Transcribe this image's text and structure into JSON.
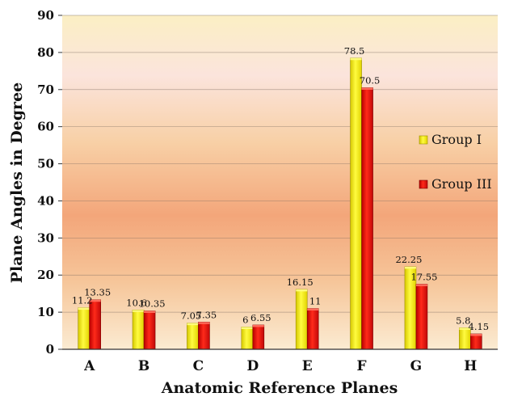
{
  "chart_data": {
    "type": "bar",
    "categories": [
      "A",
      "B",
      "C",
      "D",
      "E",
      "F",
      "G",
      "H"
    ],
    "series": [
      {
        "name": "Group I",
        "values": [
          11.2,
          10.6,
          7.05,
          6,
          16.15,
          78.5,
          22.25,
          5.8
        ],
        "color": "#f5f000"
      },
      {
        "name": "Group III",
        "values": [
          13.35,
          10.35,
          7.35,
          6.55,
          11,
          70.5,
          17.55,
          4.15
        ],
        "color": "#e01010"
      }
    ],
    "value_labels": [
      [
        "11.2",
        "10.6",
        "7.05",
        "6",
        "16.15",
        "78.5",
        "22.25",
        "5.8"
      ],
      [
        "13.35",
        "10.35",
        "7.35",
        "6.55",
        "11",
        "70.5",
        "17.55",
        "4.15"
      ]
    ],
    "xlabel": "Anatomic Reference Planes",
    "ylabel": "Plane Angles in Degree",
    "ylim": [
      0,
      90
    ],
    "yticks": [
      "0",
      "10",
      "20",
      "30",
      "40",
      "50",
      "60",
      "70",
      "80",
      "90"
    ],
    "legend_position": "right",
    "grid": "horizontal",
    "background": "warm gradient"
  }
}
